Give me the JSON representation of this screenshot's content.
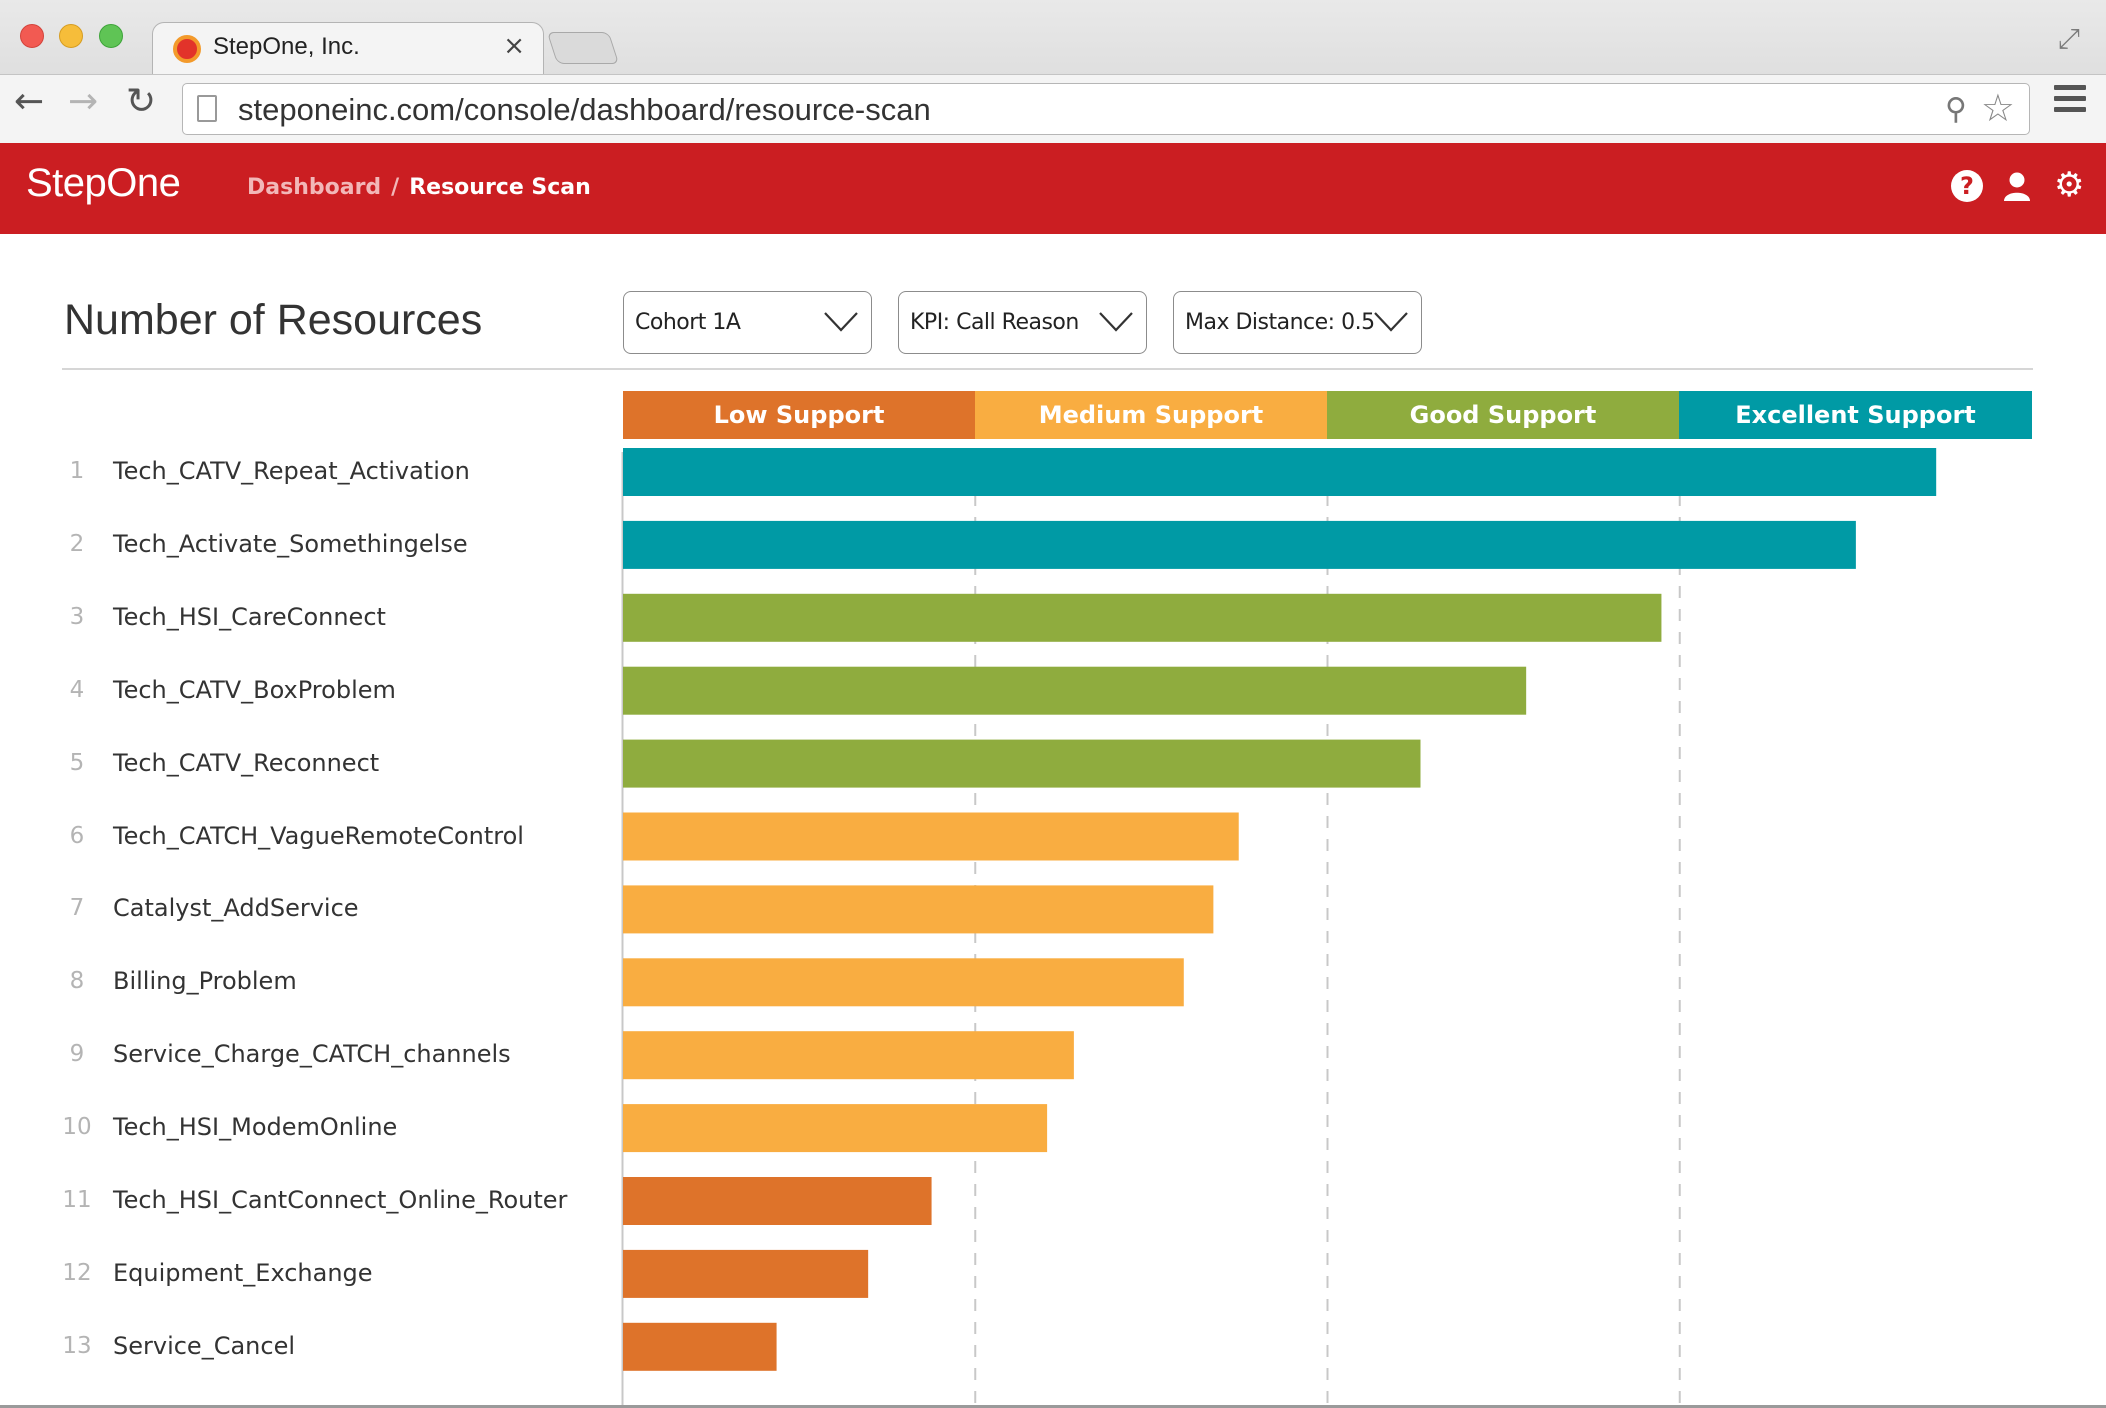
{
  "browser": {
    "tab_title": "StepOne, Inc.",
    "tab_close": "×",
    "url": "steponeinc.com/console/dashboard/resource-scan",
    "icons": [
      "close-red",
      "minimize-yellow",
      "zoom-green",
      "favicon",
      "back-icon",
      "forward-icon",
      "reload-icon",
      "page-icon",
      "zoom-icon",
      "star-icon",
      "menu-icon",
      "fullscreen-icon"
    ]
  },
  "app": {
    "logo": "StepOne",
    "breadcrumb": {
      "root": "Dashboard",
      "separator": "/",
      "current": "Resource Scan"
    },
    "header_icons": [
      "help-icon",
      "user-icon",
      "gear-icon"
    ],
    "brand_color": "#cb1e22"
  },
  "page": {
    "title": "Number of Resources",
    "filters": [
      {
        "label": "Cohort 1A"
      },
      {
        "label": "KPI: Call Reason"
      },
      {
        "label": "Max Distance: 0.5"
      }
    ]
  },
  "support_bands": [
    {
      "label": "Low Support",
      "color": "#de732a"
    },
    {
      "label": "Medium Support",
      "color": "#f9ad41"
    },
    {
      "label": "Good Support",
      "color": "#8fac3e"
    },
    {
      "label": "Excellent Support",
      "color": "#009aa5"
    }
  ],
  "chart_data": {
    "type": "bar",
    "orientation": "horizontal",
    "title": "Number of Resources",
    "xlim": [
      0,
      100
    ],
    "band_boundaries": [
      25,
      50,
      75
    ],
    "grid": "dashed vertical at band boundaries",
    "rows": [
      {
        "rank": "1",
        "name": "Tech_CATV_Repeat_Activation",
        "value": 93.2,
        "band": 3
      },
      {
        "rank": "2",
        "name": "Tech_Activate_Somethingelse",
        "value": 87.5,
        "band": 3
      },
      {
        "rank": "3",
        "name": "Tech_HSI_CareConnect",
        "value": 73.7,
        "band": 2
      },
      {
        "rank": "4",
        "name": "Tech_CATV_BoxProblem",
        "value": 64.1,
        "band": 2
      },
      {
        "rank": "5",
        "name": "Tech_CATV_Reconnect",
        "value": 56.6,
        "band": 2
      },
      {
        "rank": "6",
        "name": "Tech_CATCH_VagueRemoteControl",
        "value": 43.7,
        "band": 1
      },
      {
        "rank": "7",
        "name": "Catalyst_AddService",
        "value": 41.9,
        "band": 1
      },
      {
        "rank": "8",
        "name": "Billing_Problem",
        "value": 39.8,
        "band": 1
      },
      {
        "rank": "9",
        "name": "Service_Charge_CATCH_channels",
        "value": 32.0,
        "band": 1
      },
      {
        "rank": "10",
        "name": "Tech_HSI_ModemOnline",
        "value": 30.1,
        "band": 1
      },
      {
        "rank": "11",
        "name": "Tech_HSI_CantConnect_Online_Router",
        "value": 21.9,
        "band": 0
      },
      {
        "rank": "12",
        "name": "Equipment_Exchange",
        "value": 17.4,
        "band": 0
      },
      {
        "rank": "13",
        "name": "Service_Cancel",
        "value": 10.9,
        "band": 0
      }
    ]
  }
}
